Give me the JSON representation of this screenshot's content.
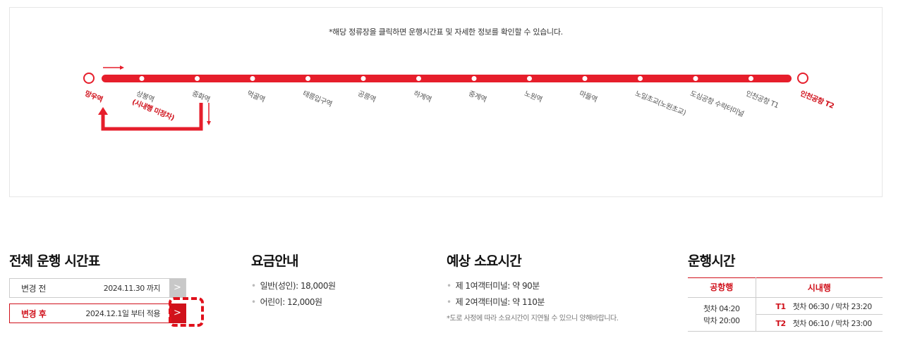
{
  "route": {
    "notice": "*해당 정류장을 클릭하면 운행시간표 및 자세한 정보를 확인할 수 있습니다.",
    "start": "망우역",
    "end": "인천공항 T2",
    "stops": [
      {
        "name": "상봉역",
        "sub": "(시내행 미정차)"
      },
      {
        "name": "중화역"
      },
      {
        "name": "먹골역"
      },
      {
        "name": "태릉입구역"
      },
      {
        "name": "공릉역"
      },
      {
        "name": "하계역"
      },
      {
        "name": "중계역"
      },
      {
        "name": "노원역"
      },
      {
        "name": "마들역"
      },
      {
        "name": "노일초교(노원초교)"
      },
      {
        "name": "도심공항 수락터미널"
      },
      {
        "name": "인천공항 T1"
      }
    ],
    "line_color": "#e61e2b"
  },
  "timetable": {
    "title": "전체 운행 시간표",
    "before": {
      "label": "변경 전",
      "date": "2024.11.30 까지",
      "arrow": ">"
    },
    "after": {
      "label": "변경 후",
      "date": "2024.12.1일 부터 적용",
      "arrow": ">"
    }
  },
  "fare": {
    "title": "요금안내",
    "items": [
      "일반(성인): 18,000원",
      "어린이: 12,000원"
    ]
  },
  "duration": {
    "title": "예상 소요시간",
    "items": [
      "제 1여객터미널: 약 90분",
      "제 2여객터미널: 약 110분"
    ],
    "note": "*도로 사정에 따라 소요시간이 지연될 수 있으니 양해바랍니다."
  },
  "operation": {
    "title": "운행시간",
    "col_airport": "공항행",
    "col_city": "시내행",
    "airport_first": "첫차 04:20",
    "airport_last": "막차 20:00",
    "t1_label": "T1",
    "t1_time": "첫차 06:30 / 막차 23:20",
    "t2_label": "T2",
    "t2_time": "첫차 06:10 / 막차 23:00"
  }
}
